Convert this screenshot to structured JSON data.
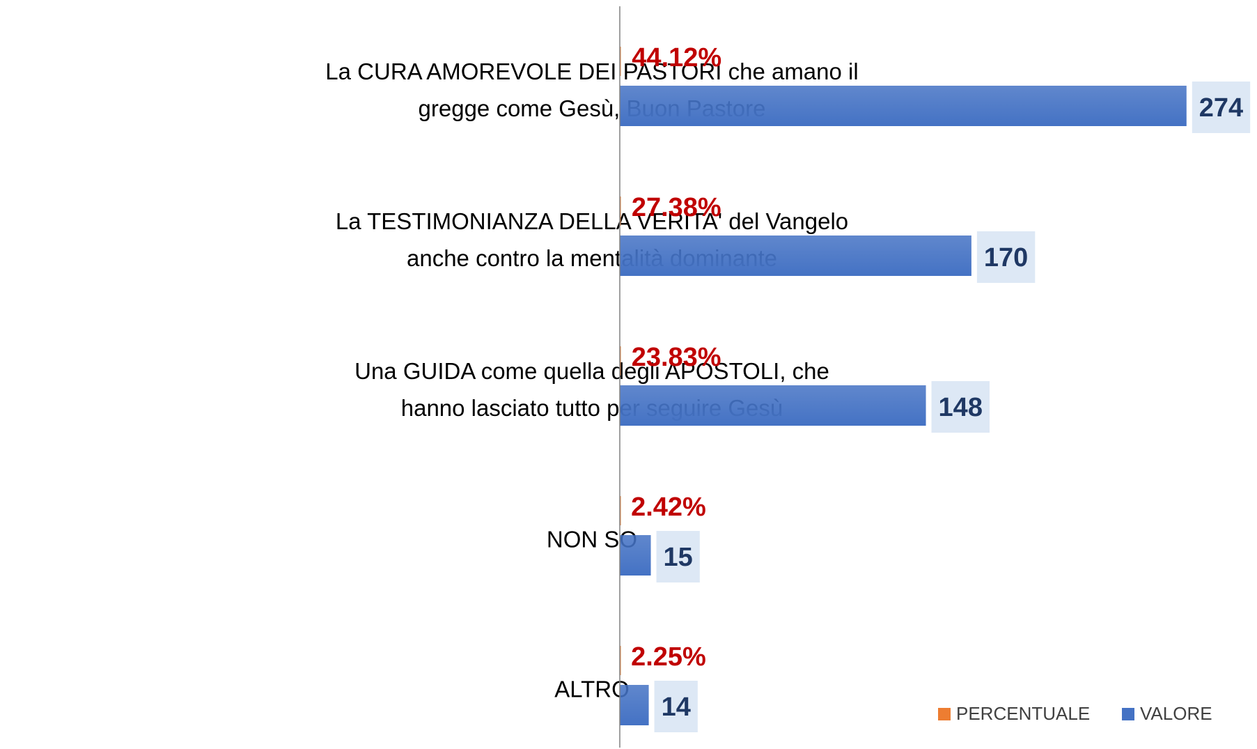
{
  "chart_data": {
    "type": "bar",
    "orientation": "horizontal",
    "categories": [
      [
        "La CURA AMOREVOLE DEI PASTORI che amano il",
        "gregge come Gesù, Buon Pastore"
      ],
      [
        "La TESTIMONIANZA DELLA VERITA' del Vangelo",
        "anche contro la mentalità dominante"
      ],
      [
        "Una GUIDA come quella degli APOSTOLI, che",
        "hanno lasciato tutto per seguire Gesù"
      ],
      [
        "NON SO"
      ],
      [
        "ALTRO"
      ]
    ],
    "series": [
      {
        "name": "PERCENTUALE",
        "color": "#ed7d31",
        "values": [
          0.4412,
          0.2738,
          0.2383,
          0.0242,
          0.0225
        ],
        "value_labels": [
          "44.12%",
          "27.38%",
          "23.83%",
          "2.42%",
          "2.25%"
        ]
      },
      {
        "name": "VALORE",
        "color": "#4472c4",
        "values": [
          274,
          170,
          148,
          15,
          14
        ]
      }
    ],
    "xlim": [
      0,
      300
    ],
    "legend": "bottom-right"
  }
}
